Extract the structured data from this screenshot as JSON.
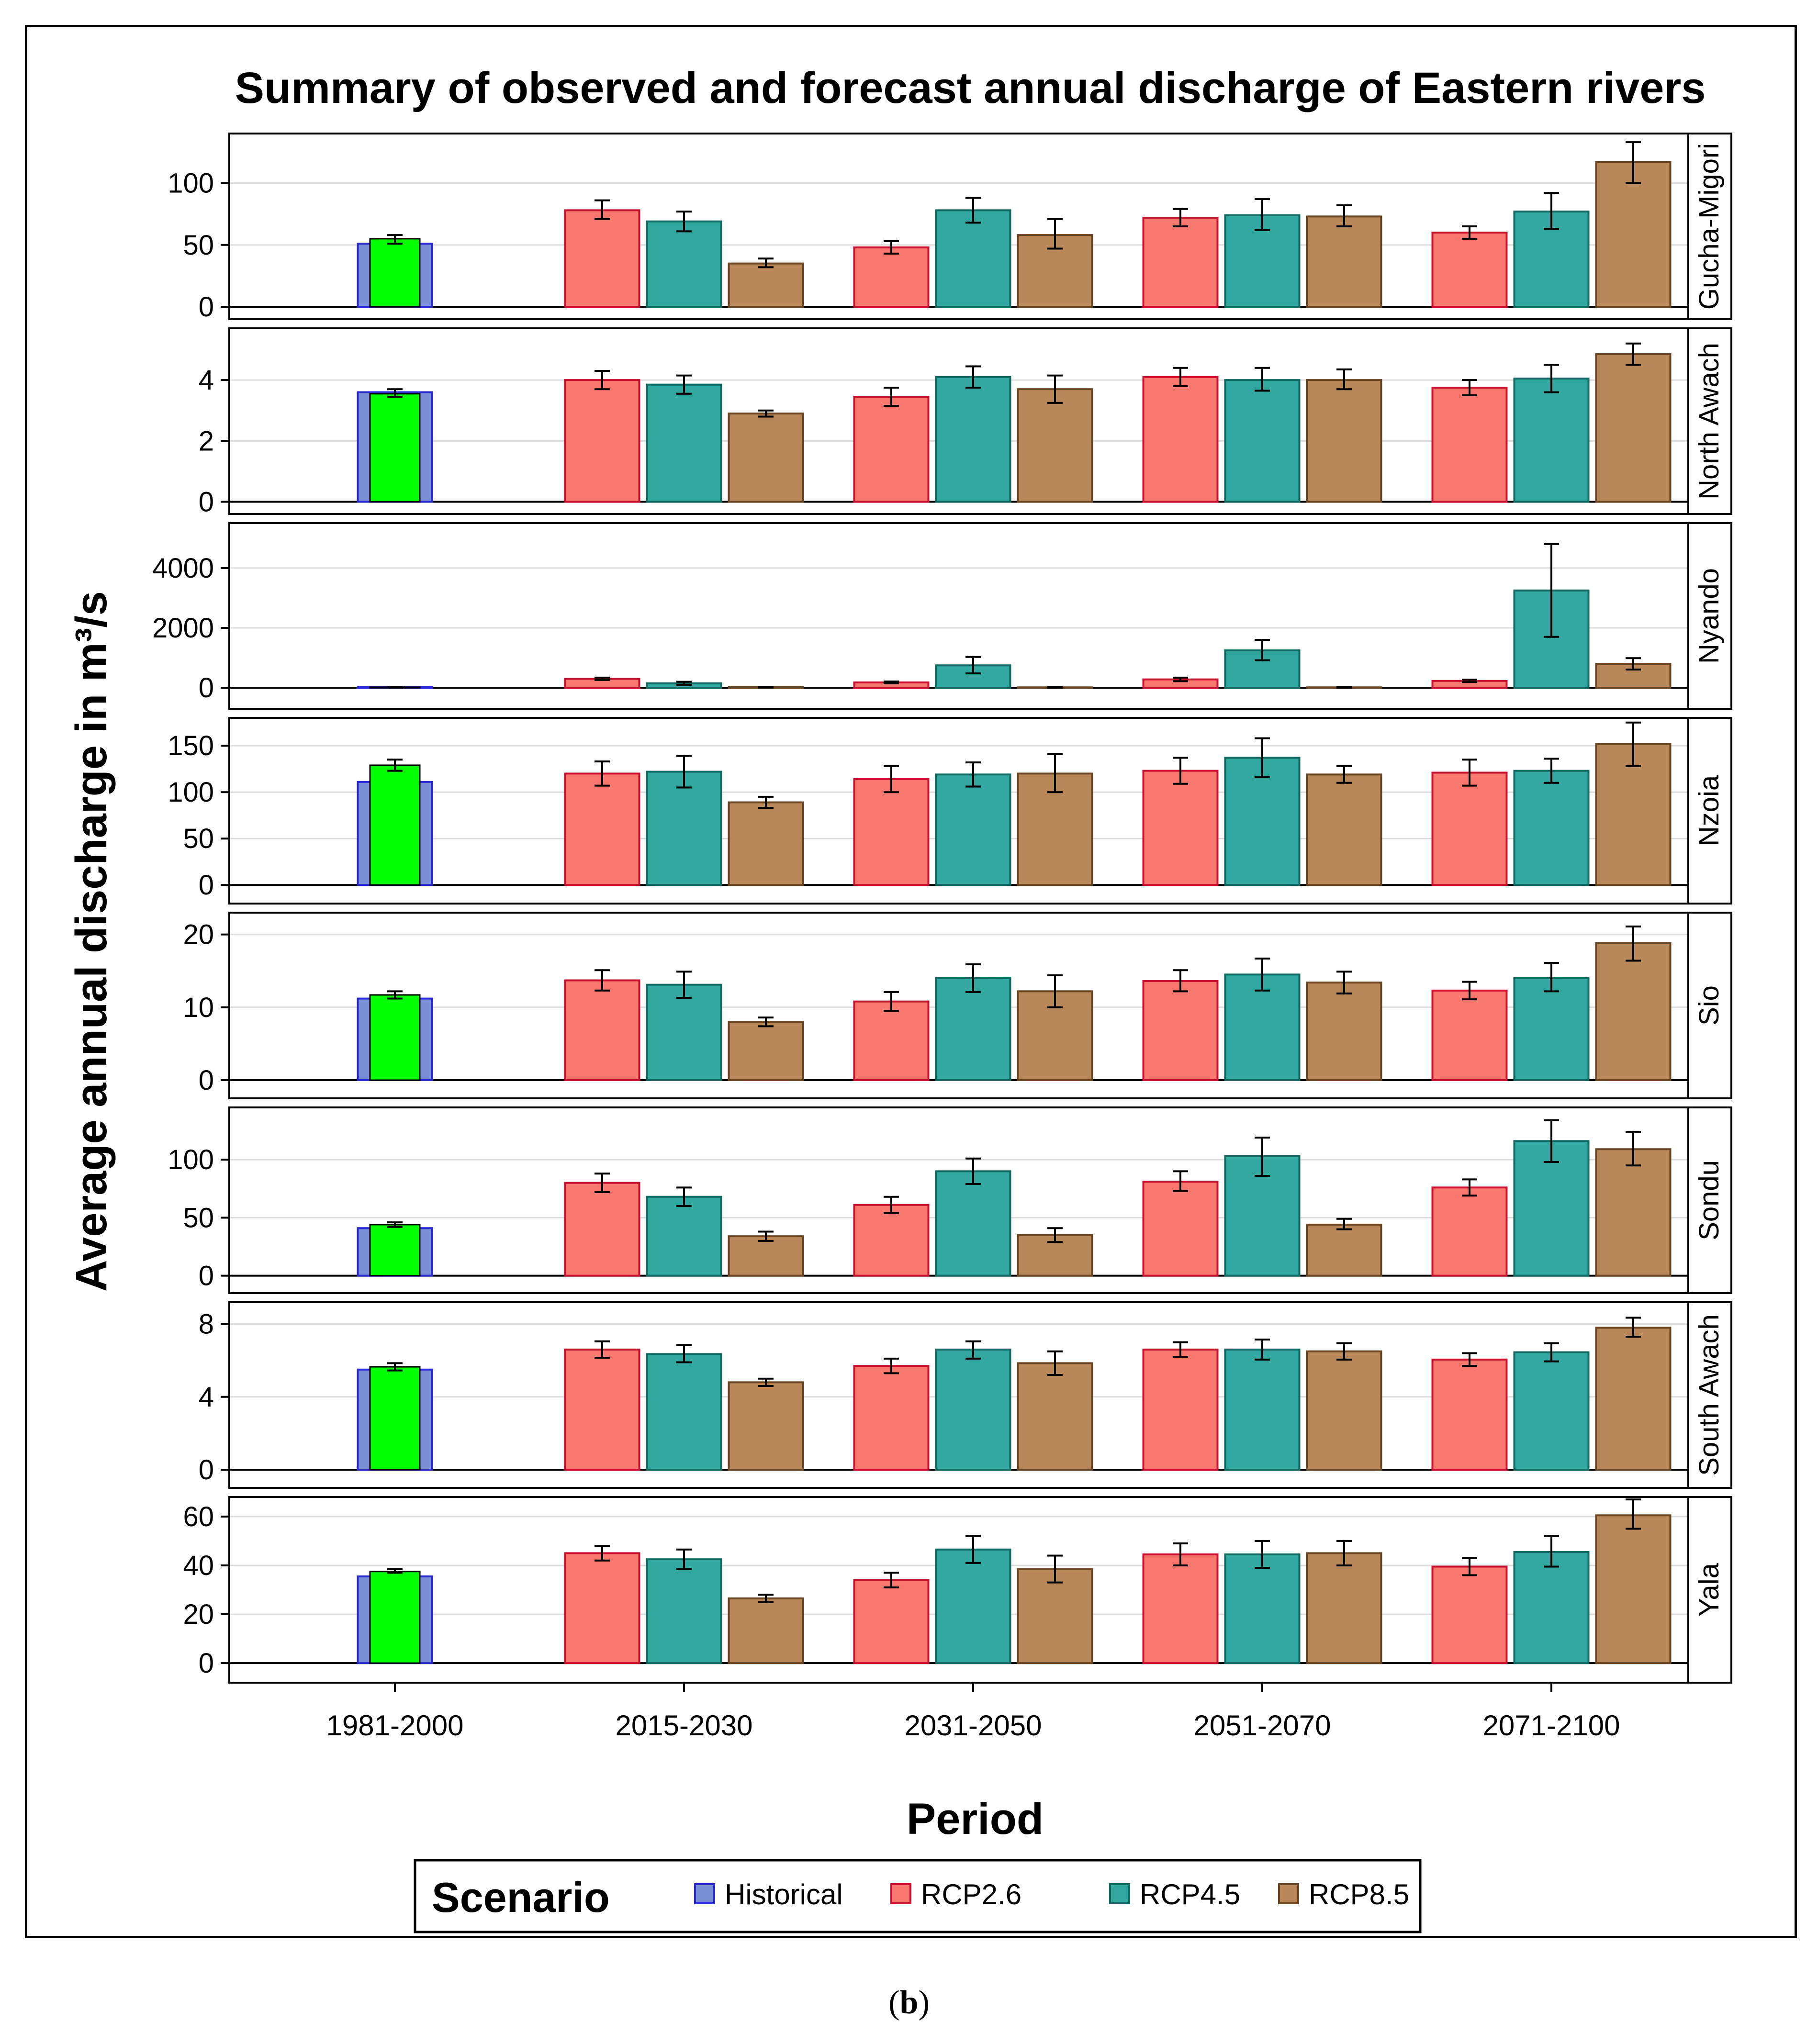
{
  "chart_data": {
    "type": "bar",
    "title": "Summary of observed and forecast annual discharge of Eastern rivers",
    "xlabel": "Period",
    "ylabel": "Average annual discharge in m³/s",
    "categories": [
      "1981-2000",
      "2015-2030",
      "2031-2050",
      "2051-2070",
      "2071-2100"
    ],
    "legend": {
      "title": "Scenario",
      "placement": "bottom",
      "entries": [
        {
          "name": "Historical",
          "color": "#7b8fd8",
          "border": "#2a2ad0"
        },
        {
          "name": "RCP2.6",
          "color": "#f8786f",
          "border": "#c8102e"
        },
        {
          "name": "RCP4.5",
          "color": "#33a8a0",
          "border": "#0f6a62"
        },
        {
          "name": "RCP8.5",
          "color": "#b8875a",
          "border": "#6a4522"
        }
      ]
    },
    "observed_color": "#00ff00",
    "grid": true,
    "panels": [
      {
        "name": "Gucha-Migori",
        "ylim": [
          -10,
          140
        ],
        "ticks": [
          0,
          50,
          100
        ],
        "historical": {
          "value": 51,
          "observed": 55,
          "err": [
            51,
            58
          ]
        },
        "values": {
          "RCP2.6": [
            78,
            48,
            72,
            60
          ],
          "RCP4.5": [
            69,
            78,
            74,
            77
          ],
          "RCP8.5": [
            35,
            58,
            73,
            117
          ]
        },
        "errors": {
          "RCP2.6": [
            [
              71,
              86
            ],
            [
              43,
              53
            ],
            [
              65,
              79
            ],
            [
              55,
              65
            ]
          ],
          "RCP4.5": [
            [
              61,
              77
            ],
            [
              68,
              88
            ],
            [
              62,
              87
            ],
            [
              63,
              92
            ]
          ],
          "RCP8.5": [
            [
              32,
              39
            ],
            [
              47,
              71
            ],
            [
              65,
              82
            ],
            [
              100,
              133
            ]
          ]
        }
      },
      {
        "name": "North Awach",
        "ylim": [
          -0.4,
          5.7
        ],
        "ticks": [
          0,
          2,
          4
        ],
        "historical": {
          "value": 3.6,
          "observed": 3.55,
          "err": [
            3.45,
            3.7
          ]
        },
        "values": {
          "RCP2.6": [
            4.0,
            3.45,
            4.1,
            3.75
          ],
          "RCP4.5": [
            3.85,
            4.1,
            4.0,
            4.05
          ],
          "RCP8.5": [
            2.9,
            3.7,
            4.0,
            4.85
          ]
        },
        "errors": {
          "RCP2.6": [
            [
              3.7,
              4.3
            ],
            [
              3.15,
              3.75
            ],
            [
              3.8,
              4.4
            ],
            [
              3.5,
              4.0
            ]
          ],
          "RCP4.5": [
            [
              3.55,
              4.15
            ],
            [
              3.75,
              4.45
            ],
            [
              3.65,
              4.4
            ],
            [
              3.6,
              4.5
            ]
          ],
          "RCP8.5": [
            [
              2.8,
              3.0
            ],
            [
              3.25,
              4.15
            ],
            [
              3.7,
              4.35
            ],
            [
              4.5,
              5.2
            ]
          ]
        }
      },
      {
        "name": "Nyando",
        "ylim": [
          -700,
          5500
        ],
        "ticks": [
          0,
          2000,
          4000
        ],
        "historical": {
          "value": 20,
          "observed": 20,
          "err": [
            10,
            30
          ]
        },
        "values": {
          "RCP2.6": [
            300,
            180,
            280,
            230
          ],
          "RCP4.5": [
            150,
            750,
            1250,
            3250
          ],
          "RCP8.5": [
            20,
            15,
            15,
            800
          ]
        },
        "errors": {
          "RCP2.6": [
            [
              260,
              340
            ],
            [
              150,
              210
            ],
            [
              220,
              340
            ],
            [
              190,
              270
            ]
          ],
          "RCP4.5": [
            [
              100,
              200
            ],
            [
              480,
              1030
            ],
            [
              920,
              1600
            ],
            [
              1700,
              4800
            ]
          ],
          "RCP8.5": [
            [
              10,
              30
            ],
            [
              5,
              25
            ],
            [
              5,
              25
            ],
            [
              610,
              990
            ]
          ]
        }
      },
      {
        "name": "Nzoia",
        "ylim": [
          -20,
          180
        ],
        "ticks": [
          0,
          50,
          100,
          150
        ],
        "historical": {
          "value": 111,
          "observed": 129,
          "err": [
            123,
            135
          ]
        },
        "values": {
          "RCP2.6": [
            120,
            114,
            123,
            121
          ],
          "RCP4.5": [
            122,
            119,
            137,
            123
          ],
          "RCP8.5": [
            89,
            120,
            119,
            152
          ]
        },
        "errors": {
          "RCP2.6": [
            [
              107,
              133
            ],
            [
              100,
              128
            ],
            [
              109,
              137
            ],
            [
              107,
              135
            ]
          ],
          "RCP4.5": [
            [
              105,
              139
            ],
            [
              106,
              132
            ],
            [
              116,
              158
            ],
            [
              110,
              136
            ]
          ],
          "RCP8.5": [
            [
              83,
              95
            ],
            [
              100,
              141
            ],
            [
              110,
              128
            ],
            [
              128,
              175
            ]
          ]
        }
      },
      {
        "name": "Sio",
        "ylim": [
          -2.5,
          23
        ],
        "ticks": [
          0,
          10,
          20
        ],
        "historical": {
          "value": 11.2,
          "observed": 11.7,
          "err": [
            11.2,
            12.2
          ]
        },
        "values": {
          "RCP2.6": [
            13.7,
            10.8,
            13.6,
            12.3
          ],
          "RCP4.5": [
            13.1,
            14.0,
            14.5,
            14.0
          ],
          "RCP8.5": [
            8.0,
            12.2,
            13.4,
            18.8
          ]
        },
        "errors": {
          "RCP2.6": [
            [
              12.3,
              15.1
            ],
            [
              9.5,
              12.1
            ],
            [
              12.2,
              15.1
            ],
            [
              11.1,
              13.5
            ]
          ],
          "RCP4.5": [
            [
              11.3,
              14.9
            ],
            [
              12.1,
              15.9
            ],
            [
              12.3,
              16.7
            ],
            [
              12.2,
              16.1
            ]
          ],
          "RCP8.5": [
            [
              7.4,
              8.6
            ],
            [
              10.0,
              14.4
            ],
            [
              11.9,
              14.9
            ],
            [
              16.4,
              21.1
            ]
          ]
        }
      },
      {
        "name": "Sondu",
        "ylim": [
          -15,
          145
        ],
        "ticks": [
          0,
          50,
          100
        ],
        "historical": {
          "value": 41,
          "observed": 44,
          "err": [
            42,
            46
          ]
        },
        "values": {
          "RCP2.6": [
            80,
            61,
            81,
            76
          ],
          "RCP4.5": [
            68,
            90,
            103,
            116
          ],
          "RCP8.5": [
            34,
            35,
            44,
            109
          ]
        },
        "errors": {
          "RCP2.6": [
            [
              72,
              88
            ],
            [
              54,
              68
            ],
            [
              73,
              90
            ],
            [
              69,
              83
            ]
          ],
          "RCP4.5": [
            [
              60,
              76
            ],
            [
              79,
              101
            ],
            [
              86,
              119
            ],
            [
              98,
              134
            ]
          ],
          "RCP8.5": [
            [
              30,
              38
            ],
            [
              29,
              41
            ],
            [
              40,
              49
            ],
            [
              95,
              124
            ]
          ]
        }
      },
      {
        "name": "South Awach",
        "ylim": [
          -1,
          9.2
        ],
        "ticks": [
          0,
          4,
          8
        ],
        "historical": {
          "value": 5.5,
          "observed": 5.65,
          "err": [
            5.45,
            5.85
          ]
        },
        "values": {
          "RCP2.6": [
            6.6,
            5.7,
            6.6,
            6.05
          ],
          "RCP4.5": [
            6.35,
            6.6,
            6.6,
            6.45
          ],
          "RCP8.5": [
            4.8,
            5.85,
            6.5,
            7.8
          ]
        },
        "errors": {
          "RCP2.6": [
            [
              6.15,
              7.05
            ],
            [
              5.3,
              6.1
            ],
            [
              6.2,
              7.0
            ],
            [
              5.7,
              6.4
            ]
          ],
          "RCP4.5": [
            [
              5.9,
              6.85
            ],
            [
              6.1,
              7.05
            ],
            [
              6.05,
              7.15
            ],
            [
              5.95,
              6.95
            ]
          ],
          "RCP8.5": [
            [
              4.6,
              5.0
            ],
            [
              5.2,
              6.5
            ],
            [
              6.05,
              6.95
            ],
            [
              7.3,
              8.35
            ]
          ]
        }
      },
      {
        "name": "Yala",
        "ylim": [
          -8,
          68
        ],
        "ticks": [
          0,
          20,
          40,
          60
        ],
        "historical": {
          "value": 35.5,
          "observed": 37.5,
          "err": [
            37,
            38.5
          ]
        },
        "values": {
          "RCP2.6": [
            45,
            34,
            44.5,
            39.5
          ],
          "RCP4.5": [
            42.5,
            46.5,
            44.5,
            45.5
          ],
          "RCP8.5": [
            26.5,
            38.5,
            45,
            60.5
          ]
        },
        "errors": {
          "RCP2.6": [
            [
              42,
              48
            ],
            [
              31,
              37
            ],
            [
              40,
              49
            ],
            [
              36,
              43
            ]
          ],
          "RCP4.5": [
            [
              38.5,
              46.5
            ],
            [
              41,
              52
            ],
            [
              39,
              50
            ],
            [
              39.5,
              52
            ]
          ],
          "RCP8.5": [
            [
              25,
              28
            ],
            [
              33,
              44
            ],
            [
              40,
              50
            ],
            [
              55,
              67
            ]
          ]
        }
      }
    ]
  },
  "caption": {
    "open": "(",
    "label": "b",
    "close": ")"
  }
}
